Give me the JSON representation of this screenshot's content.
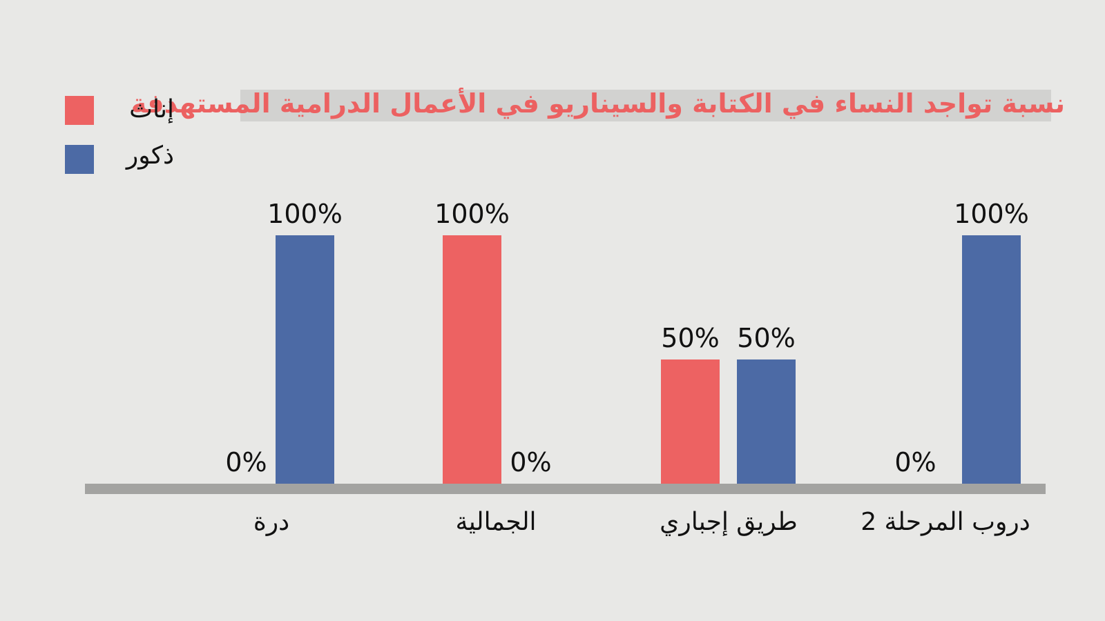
{
  "colors": {
    "female": "#ed6262",
    "male": "#4c6aa5",
    "axis": "#a3a3a1",
    "background": "#e8e8e6",
    "title": "#ec6161"
  },
  "chart_data": {
    "type": "bar",
    "title": "نسبة تواجد النساء في الكتابة والسيناريو في الأعمال الدرامية المستهدفة",
    "categories": [
      "درة",
      "الجمالية",
      "طريق إجباري",
      "دروب المرحلة 2"
    ],
    "series": [
      {
        "name": "إناث",
        "values": [
          0,
          100,
          50,
          0
        ],
        "labels": [
          "0%",
          "100%",
          "50%",
          "0%"
        ]
      },
      {
        "name": "ذكور",
        "values": [
          100,
          0,
          50,
          100
        ],
        "labels": [
          "100%",
          "0%",
          "50%",
          "100%"
        ]
      }
    ],
    "ylim": [
      0,
      100
    ],
    "grid": false,
    "legend": "top-left"
  }
}
